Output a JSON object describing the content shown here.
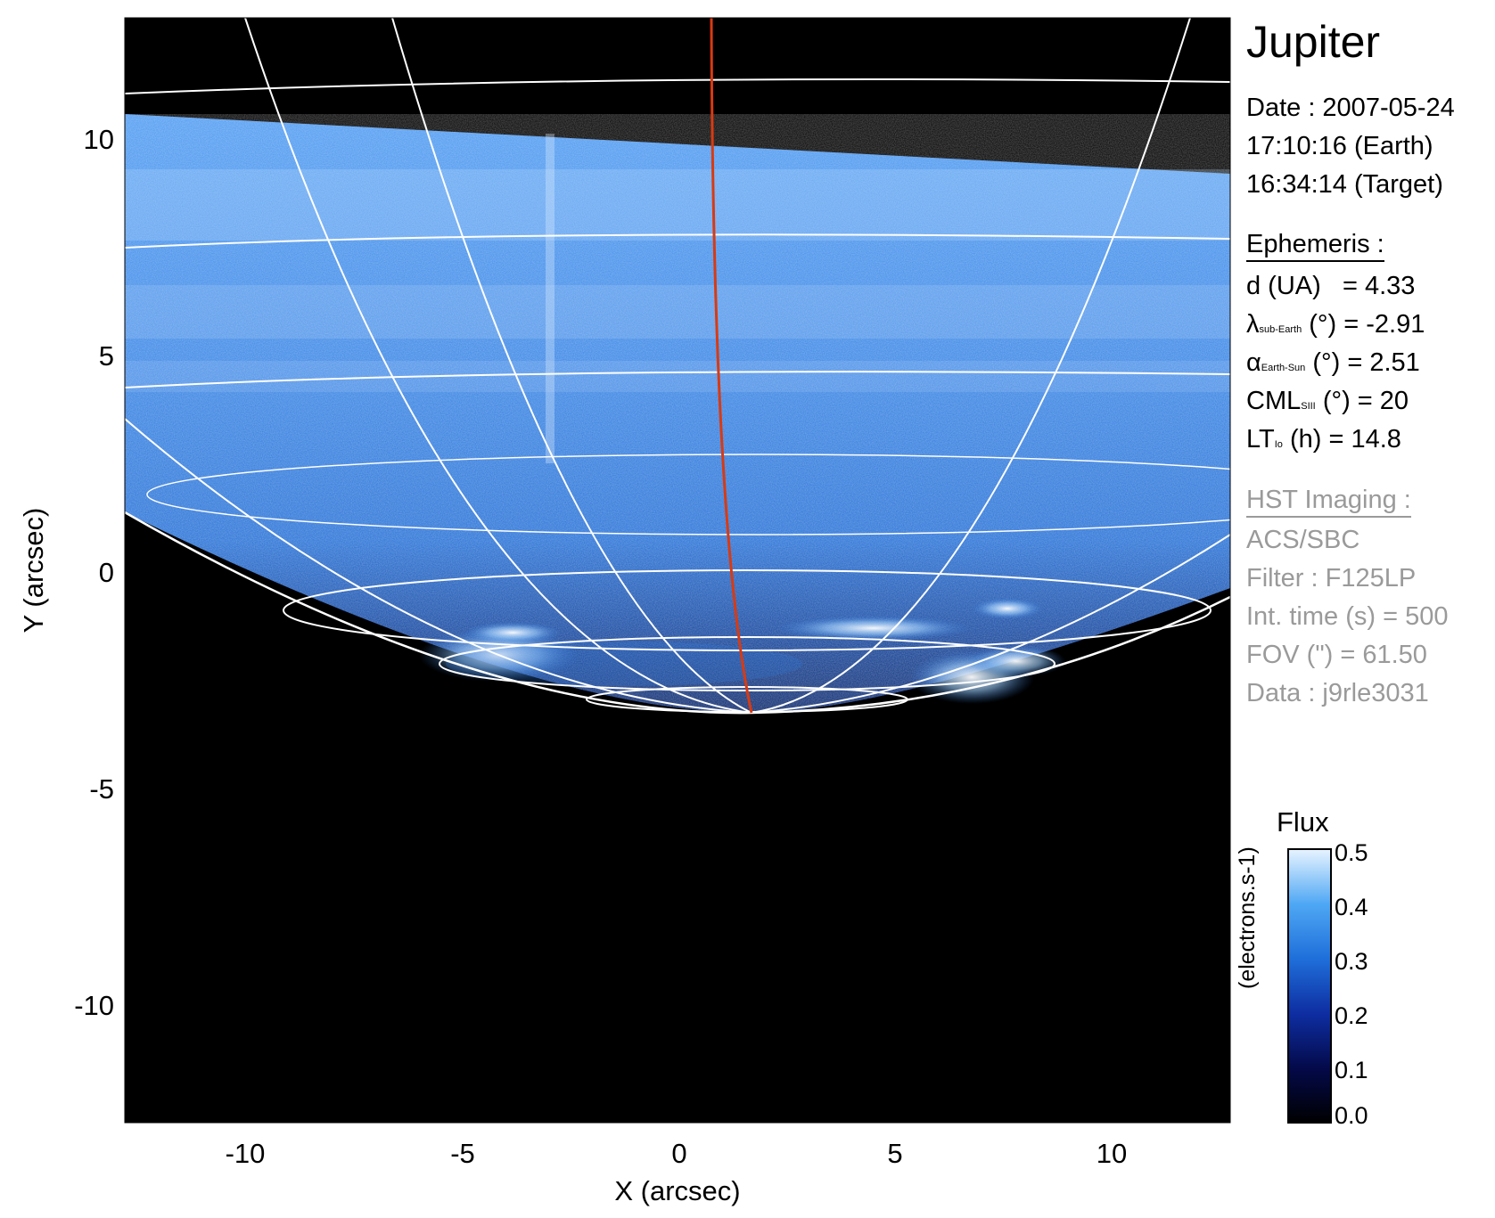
{
  "figure": {
    "x_axis": {
      "label": "X (arcsec)",
      "ticks": [
        "-10",
        "-5",
        "0",
        "5",
        "10"
      ],
      "range": [
        -12.8,
        12.8
      ]
    },
    "y_axis": {
      "label": "Y (arcsec)",
      "ticks": [
        "10",
        "5",
        "0",
        "-5",
        "-10"
      ],
      "range": [
        -12.8,
        12.8
      ]
    },
    "colors": {
      "background": "#000000",
      "planet_blue": "#2f7de0",
      "grid": "#ffffff",
      "meridian": "#d83a12"
    }
  },
  "info": {
    "title": "Jupiter",
    "date_line": "Date : 2007-05-24",
    "earth_time": "17:10:16 (Earth)",
    "target_time": "16:34:14 (Target)",
    "ephemeris": {
      "header": "Ephemeris :",
      "d": {
        "label": "d (UA)",
        "value": "= 4.33"
      },
      "lambda": {
        "symbol": "λ",
        "sub": "sub-Earth",
        "rest": "(°) = -2.91"
      },
      "alpha": {
        "symbol": "α",
        "sub": "Earth-Sun",
        "rest": "(°) = 2.51"
      },
      "cml": {
        "symbol": "CML",
        "sub": "SIII",
        "rest": "(°) = 20"
      },
      "lt": {
        "symbol": "LT",
        "sub": "Io",
        "rest": "(h) = 14.8"
      }
    },
    "hst": {
      "header": "HST Imaging :",
      "instrument": "ACS/SBC",
      "filter": "Filter : F125LP",
      "int_time": "Int. time (s) = 500",
      "fov": "FOV (\") = 61.50",
      "data": "Data : j9rle3031"
    }
  },
  "colorbar": {
    "title": "Flux",
    "unit": "(electrons.s-1)",
    "ticks": [
      "0.5",
      "0.4",
      "0.3",
      "0.2",
      "0.1",
      "0.0"
    ]
  }
}
